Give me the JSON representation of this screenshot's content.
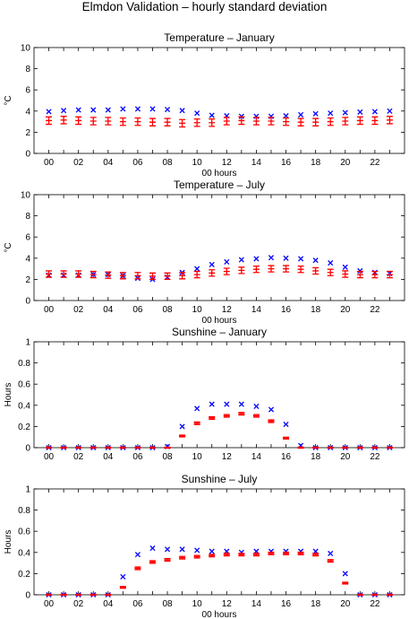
{
  "figure": {
    "title": "Elmdon Validation – hourly standard deviation"
  },
  "colors": {
    "observed": "#0000ff",
    "model": "#ff0000",
    "axis": "#000000"
  },
  "chart_data": [
    {
      "type": "scatter",
      "title": "Temperature – January",
      "xlabel": "00 hours",
      "ylabel": "°C",
      "ylim": [
        0,
        10
      ],
      "yticks": [
        0,
        2,
        4,
        6,
        8,
        10
      ],
      "xlim": [
        -1,
        24
      ],
      "xticks": [
        "00",
        "02",
        "04",
        "06",
        "08",
        "10",
        "12",
        "14",
        "16",
        "18",
        "20",
        "22"
      ],
      "x": [
        0,
        1,
        2,
        3,
        4,
        5,
        6,
        7,
        8,
        9,
        10,
        11,
        12,
        13,
        14,
        15,
        16,
        17,
        18,
        19,
        20,
        21,
        22,
        23
      ],
      "series": [
        {
          "marker": "x",
          "values": [
            3.95,
            4.05,
            4.1,
            4.1,
            4.1,
            4.2,
            4.2,
            4.2,
            4.15,
            4.05,
            3.8,
            3.6,
            3.55,
            3.5,
            3.5,
            3.5,
            3.55,
            3.65,
            3.75,
            3.8,
            3.85,
            3.9,
            3.95,
            4.0
          ]
        },
        {
          "marker": "errorbar",
          "values": [
            3.1,
            3.15,
            3.1,
            3.05,
            3.05,
            3.0,
            3.0,
            2.95,
            2.95,
            2.85,
            2.9,
            2.9,
            3.05,
            3.1,
            3.05,
            3.05,
            3.0,
            2.95,
            2.95,
            3.0,
            3.05,
            3.1,
            3.1,
            3.15
          ],
          "error": [
            0.35,
            0.35,
            0.35,
            0.35,
            0.35,
            0.35,
            0.35,
            0.35,
            0.35,
            0.35,
            0.35,
            0.35,
            0.35,
            0.35,
            0.35,
            0.35,
            0.35,
            0.35,
            0.35,
            0.35,
            0.35,
            0.35,
            0.35,
            0.35
          ]
        }
      ]
    },
    {
      "type": "scatter",
      "title": "Temperature – July",
      "xlabel": "00 hours",
      "ylabel": "°C",
      "ylim": [
        0,
        10
      ],
      "yticks": [
        0,
        2,
        4,
        6,
        8,
        10
      ],
      "xlim": [
        -1,
        24
      ],
      "xticks": [
        "00",
        "02",
        "04",
        "06",
        "08",
        "10",
        "12",
        "14",
        "16",
        "18",
        "20",
        "22"
      ],
      "x": [
        0,
        1,
        2,
        3,
        4,
        5,
        6,
        7,
        8,
        9,
        10,
        11,
        12,
        13,
        14,
        15,
        16,
        17,
        18,
        19,
        20,
        21,
        22,
        23
      ],
      "series": [
        {
          "marker": "x",
          "values": [
            2.4,
            2.4,
            2.4,
            2.45,
            2.45,
            2.35,
            2.1,
            2.0,
            2.2,
            2.65,
            3.0,
            3.4,
            3.65,
            3.85,
            3.95,
            4.05,
            4.0,
            3.95,
            3.8,
            3.55,
            3.15,
            2.8,
            2.65,
            2.55
          ]
        },
        {
          "marker": "errorbar",
          "values": [
            2.5,
            2.5,
            2.5,
            2.45,
            2.4,
            2.35,
            2.35,
            2.3,
            2.3,
            2.35,
            2.45,
            2.6,
            2.75,
            2.85,
            2.95,
            3.0,
            3.0,
            2.95,
            2.8,
            2.65,
            2.5,
            2.45,
            2.45,
            2.45
          ],
          "error": [
            0.3,
            0.3,
            0.3,
            0.3,
            0.3,
            0.3,
            0.3,
            0.3,
            0.3,
            0.3,
            0.3,
            0.3,
            0.3,
            0.3,
            0.3,
            0.3,
            0.3,
            0.3,
            0.3,
            0.3,
            0.3,
            0.3,
            0.3,
            0.3
          ]
        }
      ]
    },
    {
      "type": "scatter",
      "title": "Sunshine – January",
      "xlabel": "",
      "ylabel": "Hours",
      "ylim": [
        0,
        1
      ],
      "yticks": [
        "0",
        "0.2",
        "0.4",
        "0.6",
        "0.8",
        "1"
      ],
      "xlim": [
        -1,
        24
      ],
      "xticks": [
        "00",
        "02",
        "04",
        "06",
        "08",
        "10",
        "12",
        "14",
        "16",
        "18",
        "20",
        "22"
      ],
      "x": [
        0,
        1,
        2,
        3,
        4,
        5,
        6,
        7,
        8,
        9,
        10,
        11,
        12,
        13,
        14,
        15,
        16,
        17,
        18,
        19,
        20,
        21,
        22,
        23
      ],
      "series": [
        {
          "marker": "x",
          "values": [
            0,
            0,
            0,
            0,
            0,
            0,
            0,
            0,
            0.01,
            0.2,
            0.37,
            0.41,
            0.41,
            0.41,
            0.39,
            0.36,
            0.22,
            0.02,
            0,
            0,
            0,
            0,
            0,
            0
          ]
        },
        {
          "marker": "errorbar",
          "values": [
            0,
            0,
            0,
            0,
            0,
            0,
            0,
            0,
            0,
            0.11,
            0.23,
            0.28,
            0.3,
            0.32,
            0.3,
            0.25,
            0.09,
            0,
            0,
            0,
            0,
            0,
            0,
            0
          ],
          "error": [
            0.005,
            0.005,
            0.005,
            0.005,
            0.005,
            0.005,
            0.005,
            0.005,
            0.005,
            0.008,
            0.012,
            0.012,
            0.012,
            0.012,
            0.012,
            0.012,
            0.008,
            0.005,
            0.005,
            0.005,
            0.005,
            0.005,
            0.005,
            0.005
          ]
        }
      ]
    },
    {
      "type": "scatter",
      "title": "Sunshine – July",
      "xlabel": "00 hours",
      "ylabel": "Hours",
      "ylim": [
        0,
        1
      ],
      "yticks": [
        "0",
        "0.2",
        "0.4",
        "0.6",
        "0.8",
        "1"
      ],
      "xlim": [
        -1,
        24
      ],
      "xticks": [
        "00",
        "02",
        "04",
        "06",
        "08",
        "10",
        "12",
        "14",
        "16",
        "18",
        "20",
        "22"
      ],
      "x": [
        0,
        1,
        2,
        3,
        4,
        5,
        6,
        7,
        8,
        9,
        10,
        11,
        12,
        13,
        14,
        15,
        16,
        17,
        18,
        19,
        20,
        21,
        22,
        23
      ],
      "series": [
        {
          "marker": "x",
          "values": [
            0,
            0,
            0,
            0,
            0,
            0.17,
            0.38,
            0.44,
            0.43,
            0.43,
            0.42,
            0.41,
            0.41,
            0.4,
            0.41,
            0.41,
            0.41,
            0.41,
            0.41,
            0.39,
            0.2,
            0,
            0,
            0
          ]
        },
        {
          "marker": "errorbar",
          "values": [
            0,
            0,
            0,
            0,
            0,
            0.07,
            0.25,
            0.31,
            0.33,
            0.35,
            0.36,
            0.37,
            0.38,
            0.38,
            0.38,
            0.39,
            0.39,
            0.39,
            0.38,
            0.32,
            0.11,
            0,
            0,
            0
          ],
          "error": [
            0.005,
            0.005,
            0.005,
            0.005,
            0.005,
            0.008,
            0.012,
            0.012,
            0.012,
            0.012,
            0.012,
            0.012,
            0.012,
            0.012,
            0.012,
            0.012,
            0.012,
            0.012,
            0.012,
            0.012,
            0.008,
            0.005,
            0.005,
            0.005
          ]
        }
      ]
    }
  ]
}
